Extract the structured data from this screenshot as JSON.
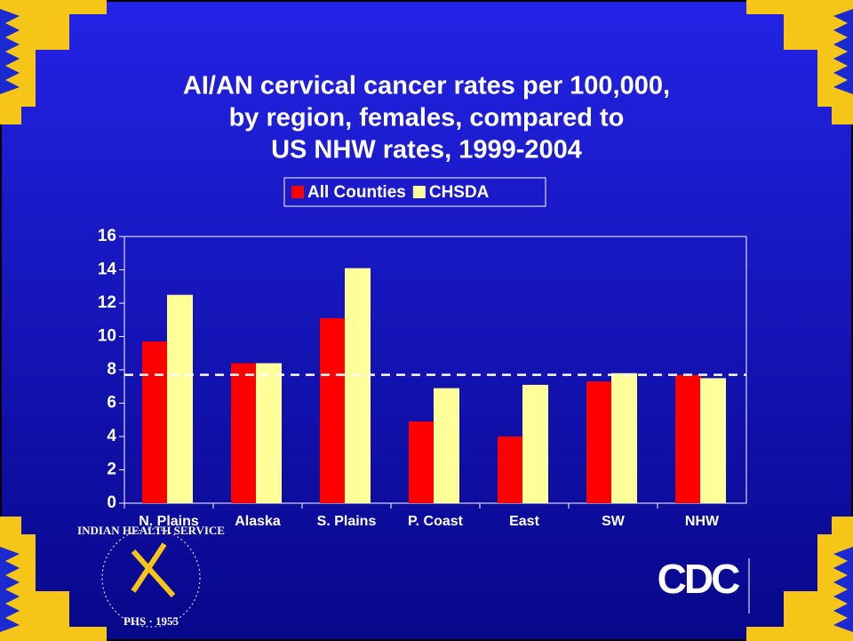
{
  "chart_data": {
    "type": "bar",
    "title": [
      "AI/AN cervical cancer rates per 100,000,",
      "by region, females, compared to",
      "US NHW rates, 1999-2004"
    ],
    "categories": [
      "N. Plains",
      "Alaska",
      "S. Plains",
      "P. Coast",
      "East",
      "SW",
      "NHW"
    ],
    "series": [
      {
        "name": "All Counties",
        "color": "#ff0000",
        "values": [
          9.7,
          8.4,
          11.1,
          4.9,
          4.0,
          7.3,
          7.7
        ]
      },
      {
        "name": "CHSDA",
        "color": "#ffff99",
        "values": [
          12.5,
          8.4,
          14.1,
          6.9,
          7.1,
          7.8,
          7.5
        ]
      }
    ],
    "reference_line": 7.7,
    "ylim": [
      0,
      16
    ],
    "yticks": [
      0,
      2,
      4,
      6,
      8,
      10,
      12,
      14,
      16
    ],
    "legend": "top"
  },
  "logos": {
    "ihs_top": "INDIAN HEALTH SERVICE",
    "ihs_bottom": "PHS · 1955",
    "cdc": "CDC"
  }
}
